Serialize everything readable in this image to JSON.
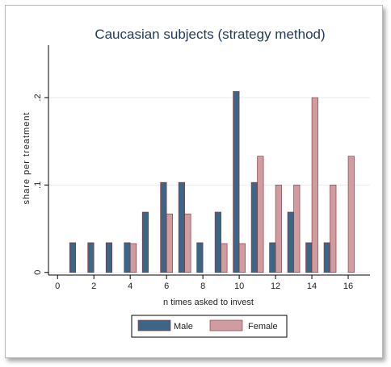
{
  "chart_data": {
    "type": "bar",
    "title": "Caucasian subjects (strategy method)",
    "xlabel": "n times asked to invest",
    "ylabel": "share per treatment",
    "x_ticks": [
      0,
      2,
      4,
      6,
      8,
      10,
      12,
      14,
      16
    ],
    "y_ticks": [
      0,
      0.1,
      0.2
    ],
    "y_tick_labels": [
      "0",
      ".1",
      ".2"
    ],
    "xlim": [
      -0.5,
      17.2
    ],
    "ylim": [
      -0.003,
      0.26
    ],
    "grid": "horizontal",
    "legend_position": "bottom",
    "colors": {
      "Male": "#3d6585",
      "Female": "#d09c9f"
    },
    "series": [
      {
        "name": "Male",
        "points": [
          [
            1,
            0.034
          ],
          [
            2,
            0.034
          ],
          [
            3,
            0.034
          ],
          [
            4,
            0.034
          ],
          [
            5,
            0.069
          ],
          [
            6,
            0.103
          ],
          [
            7,
            0.103
          ],
          [
            8,
            0.034
          ],
          [
            9,
            0.069
          ],
          [
            10,
            0.207
          ],
          [
            11,
            0.103
          ],
          [
            12,
            0.034
          ],
          [
            13,
            0.069
          ],
          [
            14,
            0.034
          ],
          [
            15,
            0.034
          ]
        ]
      },
      {
        "name": "Female",
        "points": [
          [
            4,
            0.033
          ],
          [
            6,
            0.067
          ],
          [
            7,
            0.067
          ],
          [
            9,
            0.033
          ],
          [
            10,
            0.033
          ],
          [
            11,
            0.133
          ],
          [
            12,
            0.1
          ],
          [
            13,
            0.1
          ],
          [
            14,
            0.2
          ],
          [
            15,
            0.1
          ],
          [
            16,
            0.133
          ]
        ]
      }
    ]
  }
}
